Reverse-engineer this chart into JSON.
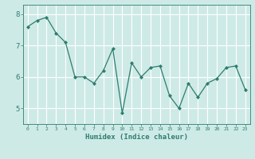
{
  "x": [
    0,
    1,
    2,
    3,
    4,
    5,
    6,
    7,
    8,
    9,
    10,
    11,
    12,
    13,
    14,
    15,
    16,
    17,
    18,
    19,
    20,
    21,
    22,
    23
  ],
  "y": [
    7.6,
    7.8,
    7.9,
    7.4,
    7.1,
    6.0,
    6.0,
    5.8,
    6.2,
    6.9,
    4.85,
    6.45,
    6.0,
    6.3,
    6.35,
    5.4,
    5.0,
    5.8,
    5.35,
    5.8,
    5.95,
    6.3,
    6.35,
    5.6
  ],
  "xlabel": "Humidex (Indice chaleur)",
  "xlim": [
    -0.5,
    23.5
  ],
  "ylim": [
    4.5,
    8.3
  ],
  "yticks": [
    5,
    6,
    7,
    8
  ],
  "xticks": [
    0,
    1,
    2,
    3,
    4,
    5,
    6,
    7,
    8,
    9,
    10,
    11,
    12,
    13,
    14,
    15,
    16,
    17,
    18,
    19,
    20,
    21,
    22,
    23
  ],
  "line_color": "#2e7d6e",
  "marker_color": "#2e7d6e",
  "bg_color": "#ceeae7",
  "grid_color": "#ffffff",
  "axis_color": "#2e7d6e",
  "tick_color": "#2e7d6e",
  "label_color": "#2e7d6e"
}
